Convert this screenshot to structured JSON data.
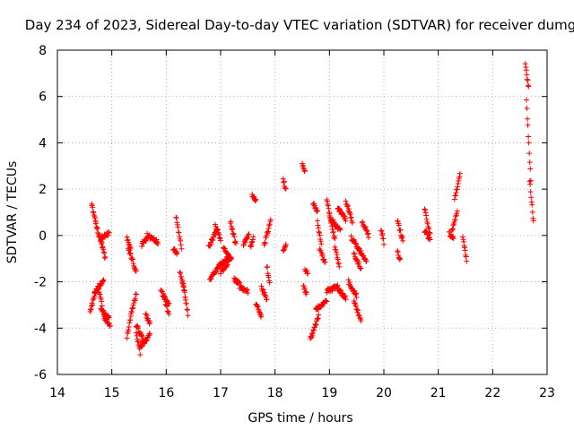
{
  "chart_data": {
    "type": "scatter",
    "title": "Day 234 of 2023, Sidereal Day-to-day VTEC variation (SDTVAR) for receiver dumg",
    "xlabel": "GPS time / hours",
    "ylabel": "SDTVAR / TECUs",
    "xlim": [
      14,
      23
    ],
    "ylim": [
      -6,
      8
    ],
    "xticks": [
      14,
      15,
      16,
      17,
      18,
      19,
      20,
      21,
      22,
      23
    ],
    "yticks": [
      -6,
      -4,
      -2,
      0,
      2,
      4,
      6,
      8
    ],
    "grid": true,
    "marker": "plus",
    "color": "#ff0000",
    "segments": [
      {
        "x0": 14.63,
        "x1": 14.7,
        "y0": 1.4,
        "y1": 0.6
      },
      {
        "x0": 14.7,
        "x1": 14.8,
        "y0": 0.6,
        "y1": -0.3
      },
      {
        "x0": 14.8,
        "x1": 14.95,
        "y0": -0.1,
        "y1": 0.1
      },
      {
        "x0": 14.8,
        "x1": 14.88,
        "y0": -0.2,
        "y1": -1.0
      },
      {
        "x0": 14.6,
        "x1": 14.7,
        "y0": -3.3,
        "y1": -2.5
      },
      {
        "x0": 14.68,
        "x1": 14.85,
        "y0": -2.5,
        "y1": -1.9
      },
      {
        "x0": 14.75,
        "x1": 14.82,
        "y0": -2.2,
        "y1": -3.0
      },
      {
        "x0": 14.8,
        "x1": 14.95,
        "y0": -3.2,
        "y1": -3.6
      },
      {
        "x0": 14.85,
        "x1": 14.97,
        "y0": -3.5,
        "y1": -3.9
      },
      {
        "x0": 15.28,
        "x1": 15.35,
        "y0": -4.4,
        "y1": -3.5
      },
      {
        "x0": 15.35,
        "x1": 15.45,
        "y0": -3.4,
        "y1": -2.5
      },
      {
        "x0": 15.3,
        "x1": 15.45,
        "y0": -0.5,
        "y1": -1.6
      },
      {
        "x0": 15.28,
        "x1": 15.35,
        "y0": -0.1,
        "y1": -0.6
      },
      {
        "x0": 15.45,
        "x1": 15.52,
        "y0": -4.2,
        "y1": -5.1
      },
      {
        "x0": 15.52,
        "x1": 15.7,
        "y0": -4.8,
        "y1": -4.3
      },
      {
        "x0": 15.45,
        "x1": 15.6,
        "y0": -3.9,
        "y1": -4.6
      },
      {
        "x0": 15.55,
        "x1": 15.65,
        "y0": -0.4,
        "y1": -0.1
      },
      {
        "x0": 15.65,
        "x1": 15.85,
        "y0": 0.0,
        "y1": -0.3
      },
      {
        "x0": 15.62,
        "x1": 15.7,
        "y0": -3.4,
        "y1": -3.8
      },
      {
        "x0": 15.9,
        "x1": 16.05,
        "y0": -2.4,
        "y1": -3.0
      },
      {
        "x0": 15.95,
        "x1": 16.05,
        "y0": -2.6,
        "y1": -3.4
      },
      {
        "x0": 16.18,
        "x1": 16.28,
        "y0": 0.8,
        "y1": -0.5
      },
      {
        "x0": 16.13,
        "x1": 16.2,
        "y0": -0.6,
        "y1": -0.8
      },
      {
        "x0": 16.25,
        "x1": 16.35,
        "y0": -1.5,
        "y1": -2.6
      },
      {
        "x0": 16.3,
        "x1": 16.4,
        "y0": -1.9,
        "y1": -3.4
      },
      {
        "x0": 16.78,
        "x1": 16.95,
        "y0": -0.5,
        "y1": 0.3
      },
      {
        "x0": 16.9,
        "x1": 17.0,
        "y0": 0.5,
        "y1": -0.2
      },
      {
        "x0": 16.8,
        "x1": 16.98,
        "y0": -1.9,
        "y1": -1.3
      },
      {
        "x0": 16.98,
        "x1": 17.15,
        "y0": -1.3,
        "y1": -0.9
      },
      {
        "x0": 17.0,
        "x1": 17.2,
        "y0": -1.6,
        "y1": -1.0
      },
      {
        "x0": 17.05,
        "x1": 17.15,
        "y0": -0.5,
        "y1": -0.9
      },
      {
        "x0": 17.18,
        "x1": 17.28,
        "y0": 0.6,
        "y1": -0.4
      },
      {
        "x0": 17.25,
        "x1": 17.35,
        "y0": -1.9,
        "y1": -2.1
      },
      {
        "x0": 17.35,
        "x1": 17.5,
        "y0": -2.2,
        "y1": -2.4
      },
      {
        "x0": 17.42,
        "x1": 17.52,
        "y0": -0.4,
        "y1": 0.1
      },
      {
        "x0": 17.58,
        "x1": 17.65,
        "y0": 1.7,
        "y1": 1.5
      },
      {
        "x0": 17.55,
        "x1": 17.6,
        "y0": -0.5,
        "y1": -0.1
      },
      {
        "x0": 17.65,
        "x1": 17.75,
        "y0": -2.9,
        "y1": -3.5
      },
      {
        "x0": 17.75,
        "x1": 17.85,
        "y0": -2.2,
        "y1": -2.8
      },
      {
        "x0": 17.8,
        "x1": 17.92,
        "y0": -0.4,
        "y1": 0.6
      },
      {
        "x0": 17.85,
        "x1": 17.9,
        "y0": -1.3,
        "y1": -2.1
      },
      {
        "x0": 18.15,
        "x1": 18.2,
        "y0": 2.4,
        "y1": 2.0
      },
      {
        "x0": 18.15,
        "x1": 18.2,
        "y0": -0.7,
        "y1": -0.3
      },
      {
        "x0": 18.5,
        "x1": 18.55,
        "y0": 3.1,
        "y1": 2.8
      },
      {
        "x0": 18.52,
        "x1": 18.58,
        "y0": -2.2,
        "y1": -2.5
      },
      {
        "x0": 18.55,
        "x1": 18.6,
        "y0": -1.5,
        "y1": -1.6
      },
      {
        "x0": 18.65,
        "x1": 18.8,
        "y0": -4.5,
        "y1": -3.5
      },
      {
        "x0": 18.75,
        "x1": 18.95,
        "y0": -3.2,
        "y1": -2.8
      },
      {
        "x0": 18.7,
        "x1": 18.78,
        "y0": 1.4,
        "y1": 1.0
      },
      {
        "x0": 18.78,
        "x1": 18.85,
        "y0": 0.6,
        "y1": -0.4
      },
      {
        "x0": 18.82,
        "x1": 18.92,
        "y0": -0.5,
        "y1": -1.2
      },
      {
        "x0": 18.95,
        "x1": 19.1,
        "y0": 1.5,
        "y1": -0.2
      },
      {
        "x0": 19.0,
        "x1": 19.2,
        "y0": 0.8,
        "y1": 0.2
      },
      {
        "x0": 18.95,
        "x1": 19.15,
        "y0": -2.4,
        "y1": -2.2
      },
      {
        "x0": 19.15,
        "x1": 19.3,
        "y0": -2.3,
        "y1": -2.7
      },
      {
        "x0": 19.15,
        "x1": 19.3,
        "y0": 1.2,
        "y1": 0.7
      },
      {
        "x0": 19.1,
        "x1": 19.18,
        "y0": -0.5,
        "y1": -1.3
      },
      {
        "x0": 19.3,
        "x1": 19.42,
        "y0": 1.5,
        "y1": 0.6
      },
      {
        "x0": 19.35,
        "x1": 19.5,
        "y0": -2.0,
        "y1": -2.6
      },
      {
        "x0": 19.45,
        "x1": 19.58,
        "y0": -2.8,
        "y1": -3.7
      },
      {
        "x0": 19.4,
        "x1": 19.55,
        "y0": -0.1,
        "y1": -0.6
      },
      {
        "x0": 19.45,
        "x1": 19.58,
        "y0": -0.8,
        "y1": -1.4
      },
      {
        "x0": 19.55,
        "x1": 19.68,
        "y0": -0.6,
        "y1": -1.2
      },
      {
        "x0": 19.6,
        "x1": 19.72,
        "y0": 0.6,
        "y1": 0.0
      },
      {
        "x0": 19.95,
        "x1": 20.0,
        "y0": 0.3,
        "y1": -0.3
      },
      {
        "x0": 20.25,
        "x1": 20.35,
        "y0": 0.6,
        "y1": -0.2
      },
      {
        "x0": 20.25,
        "x1": 20.3,
        "y0": -0.7,
        "y1": -1.1
      },
      {
        "x0": 20.75,
        "x1": 20.85,
        "y0": 1.1,
        "y1": 0.1
      },
      {
        "x0": 20.75,
        "x1": 20.85,
        "y0": 0.2,
        "y1": -0.2
      },
      {
        "x0": 21.25,
        "x1": 21.35,
        "y0": 0.2,
        "y1": 1.0
      },
      {
        "x0": 21.3,
        "x1": 21.4,
        "y0": 1.6,
        "y1": 2.6
      },
      {
        "x0": 21.2,
        "x1": 21.28,
        "y0": 0.1,
        "y1": -0.1
      },
      {
        "x0": 21.45,
        "x1": 21.52,
        "y0": -0.1,
        "y1": -1.1
      },
      {
        "x0": 22.6,
        "x1": 22.66,
        "y0": 7.4,
        "y1": 6.4
      },
      {
        "x0": 22.62,
        "x1": 22.7,
        "y0": 5.9,
        "y1": 2.4
      },
      {
        "x0": 22.68,
        "x1": 22.75,
        "y0": 2.4,
        "y1": 0.6
      }
    ]
  }
}
